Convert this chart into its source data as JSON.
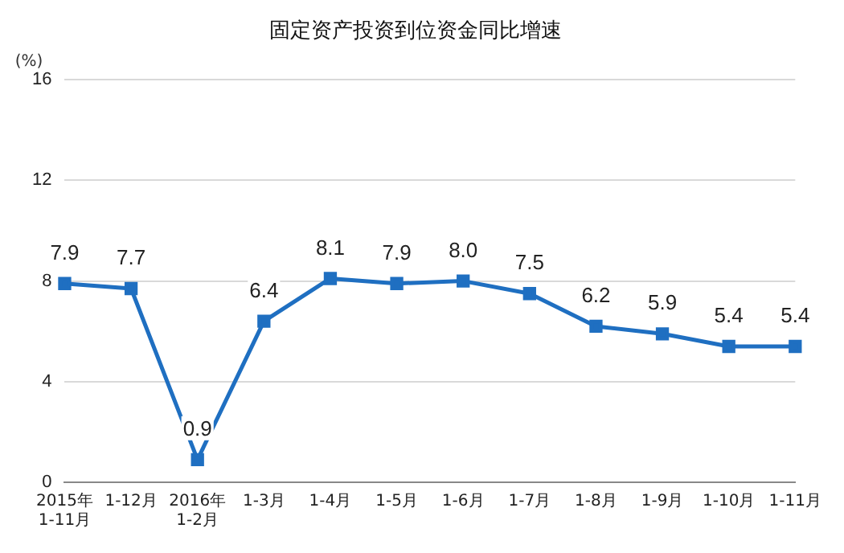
{
  "chart_data": {
    "type": "line",
    "title": "固定资产投资到位资金同比增速",
    "ylabel": "(%)",
    "categories": [
      "2015年\n1-11月",
      "1-12月",
      "2016年\n1-2月",
      "1-3月",
      "1-4月",
      "1-5月",
      "1-6月",
      "1-7月",
      "1-8月",
      "1-9月",
      "1-10月",
      "1-11月"
    ],
    "series": [
      {
        "color": "#1f6fc1",
        "values": [
          7.9,
          7.7,
          0.9,
          6.4,
          8.1,
          7.9,
          8.0,
          7.5,
          6.2,
          5.9,
          5.4,
          5.4
        ],
        "value_labels": [
          "7.9",
          "7.7",
          "0.9",
          "6.4",
          "8.1",
          "7.9",
          "8.0",
          "7.5",
          "6.2",
          "5.9",
          "5.4",
          "5.4"
        ]
      }
    ],
    "ylim": [
      0,
      16
    ],
    "yticks": [
      0,
      4,
      8,
      12,
      16
    ],
    "grid": "y",
    "legend": false,
    "marker": "square",
    "line_style": "solid"
  }
}
